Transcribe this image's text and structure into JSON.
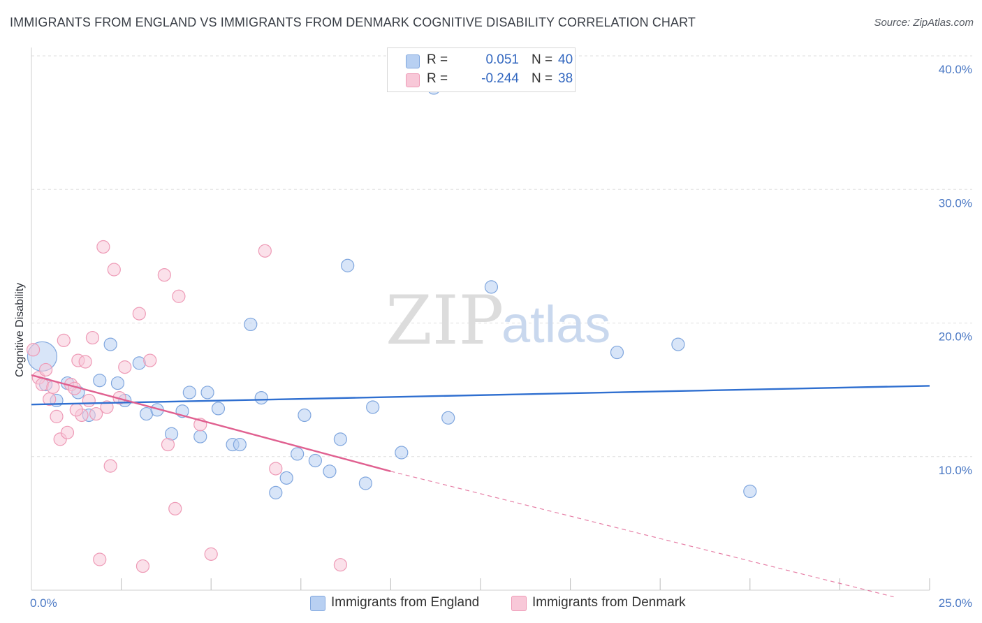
{
  "title": "IMMIGRANTS FROM ENGLAND VS IMMIGRANTS FROM DENMARK COGNITIVE DISABILITY CORRELATION CHART",
  "source": "Source: ZipAtlas.com",
  "watermark": {
    "zip": "ZIP",
    "atlas": "atlas"
  },
  "legend": {
    "england": {
      "r_label": "R =",
      "r_value": "0.051",
      "n_label": "N =",
      "n_value": "40"
    },
    "denmark": {
      "r_label": "R =",
      "r_value": "-0.244",
      "n_label": "N =",
      "n_value": "38"
    }
  },
  "bottom_legend": {
    "england": "Immigrants from England",
    "denmark": "Immigrants from Denmark"
  },
  "colors": {
    "england_fill": "#b8d0f2",
    "england_stroke": "#7fa6de",
    "england_line": "#2f6fd0",
    "denmark_fill": "#f8c8d8",
    "denmark_stroke": "#ee9ab6",
    "denmark_line": "#e06090",
    "grid": "#dddddd",
    "tick_text": "#4a78c4"
  },
  "chart_data": {
    "type": "scatter",
    "title": "IMMIGRANTS FROM ENGLAND VS IMMIGRANTS FROM DENMARK COGNITIVE DISABILITY CORRELATION CHART",
    "xlabel": "",
    "ylabel": "Cognitive Disability",
    "xlim": [
      0,
      25
    ],
    "ylim": [
      0,
      40
    ],
    "x_tick_labels": [
      "0.0%",
      "25.0%"
    ],
    "y_ticks": [
      10,
      20,
      30,
      40
    ],
    "y_tick_labels": [
      "10.0%",
      "20.0%",
      "30.0%",
      "40.0%"
    ],
    "series": [
      {
        "name": "Immigrants from England",
        "color_key": "england",
        "trend": {
          "x": [
            0,
            25
          ],
          "y": [
            13.9,
            15.3
          ],
          "dashed_to": null
        },
        "points": [
          {
            "x": 0.3,
            "y": 17.5,
            "big": true
          },
          {
            "x": 0.4,
            "y": 15.4
          },
          {
            "x": 0.7,
            "y": 14.2
          },
          {
            "x": 1.0,
            "y": 15.5
          },
          {
            "x": 1.3,
            "y": 14.8
          },
          {
            "x": 1.6,
            "y": 13.1
          },
          {
            "x": 1.9,
            "y": 15.7
          },
          {
            "x": 2.2,
            "y": 18.4
          },
          {
            "x": 2.4,
            "y": 15.5
          },
          {
            "x": 2.6,
            "y": 14.2
          },
          {
            "x": 3.0,
            "y": 17.0
          },
          {
            "x": 3.2,
            "y": 13.2
          },
          {
            "x": 3.5,
            "y": 13.5
          },
          {
            "x": 3.9,
            "y": 11.7
          },
          {
            "x": 4.2,
            "y": 13.4
          },
          {
            "x": 4.4,
            "y": 14.8
          },
          {
            "x": 4.7,
            "y": 11.5
          },
          {
            "x": 4.9,
            "y": 14.8
          },
          {
            "x": 5.2,
            "y": 13.6
          },
          {
            "x": 5.6,
            "y": 10.9
          },
          {
            "x": 5.8,
            "y": 10.9
          },
          {
            "x": 6.1,
            "y": 19.9
          },
          {
            "x": 6.4,
            "y": 14.4
          },
          {
            "x": 6.8,
            "y": 7.3
          },
          {
            "x": 7.1,
            "y": 8.4
          },
          {
            "x": 7.4,
            "y": 10.2
          },
          {
            "x": 7.6,
            "y": 13.1
          },
          {
            "x": 7.9,
            "y": 9.7
          },
          {
            "x": 8.3,
            "y": 8.9
          },
          {
            "x": 8.6,
            "y": 11.3
          },
          {
            "x": 8.8,
            "y": 24.3
          },
          {
            "x": 9.3,
            "y": 8.0
          },
          {
            "x": 9.5,
            "y": 13.7
          },
          {
            "x": 10.3,
            "y": 10.3
          },
          {
            "x": 11.2,
            "y": 37.6
          },
          {
            "x": 11.6,
            "y": 12.9
          },
          {
            "x": 12.8,
            "y": 22.7
          },
          {
            "x": 16.3,
            "y": 17.8
          },
          {
            "x": 18.0,
            "y": 18.4
          },
          {
            "x": 20.0,
            "y": 7.4
          }
        ]
      },
      {
        "name": "Immigrants from Denmark",
        "color_key": "denmark",
        "trend": {
          "x": [
            0,
            10.0
          ],
          "y": [
            16.1,
            8.9
          ],
          "dashed_to": {
            "x": 24.0,
            "y": -0.5
          }
        },
        "points": [
          {
            "x": 0.05,
            "y": 18.0
          },
          {
            "x": 0.2,
            "y": 15.9
          },
          {
            "x": 0.3,
            "y": 15.4
          },
          {
            "x": 0.4,
            "y": 16.5
          },
          {
            "x": 0.5,
            "y": 14.3
          },
          {
            "x": 0.6,
            "y": 15.2
          },
          {
            "x": 0.7,
            "y": 13.0
          },
          {
            "x": 0.8,
            "y": 11.3
          },
          {
            "x": 0.9,
            "y": 18.7
          },
          {
            "x": 1.0,
            "y": 11.8
          },
          {
            "x": 1.1,
            "y": 15.4
          },
          {
            "x": 1.2,
            "y": 15.1
          },
          {
            "x": 1.3,
            "y": 17.2
          },
          {
            "x": 1.4,
            "y": 13.1
          },
          {
            "x": 1.5,
            "y": 17.1
          },
          {
            "x": 1.6,
            "y": 14.2
          },
          {
            "x": 1.7,
            "y": 18.9
          },
          {
            "x": 1.8,
            "y": 13.2
          },
          {
            "x": 1.9,
            "y": 2.3
          },
          {
            "x": 2.0,
            "y": 25.7
          },
          {
            "x": 2.1,
            "y": 13.7
          },
          {
            "x": 2.2,
            "y": 9.3
          },
          {
            "x": 2.3,
            "y": 24.0
          },
          {
            "x": 2.45,
            "y": 14.4
          },
          {
            "x": 2.6,
            "y": 16.7
          },
          {
            "x": 3.0,
            "y": 20.7
          },
          {
            "x": 3.1,
            "y": 1.8
          },
          {
            "x": 3.3,
            "y": 17.2
          },
          {
            "x": 3.7,
            "y": 23.6
          },
          {
            "x": 3.8,
            "y": 10.9
          },
          {
            "x": 4.0,
            "y": 6.1
          },
          {
            "x": 4.1,
            "y": 22.0
          },
          {
            "x": 4.7,
            "y": 12.4
          },
          {
            "x": 5.0,
            "y": 2.7
          },
          {
            "x": 6.5,
            "y": 25.4
          },
          {
            "x": 6.8,
            "y": 9.1
          },
          {
            "x": 8.6,
            "y": 1.9
          },
          {
            "x": 1.25,
            "y": 13.5
          }
        ]
      }
    ]
  }
}
